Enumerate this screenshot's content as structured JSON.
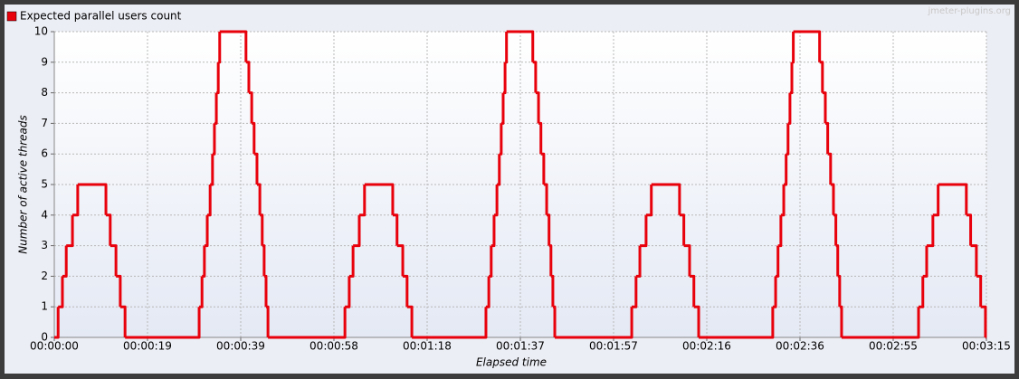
{
  "chart_data": {
    "type": "step-line",
    "watermark": "jmeter-plugins.org",
    "xlabel": "Elapsed time",
    "ylabel": "Number of active threads",
    "legend": "top-left",
    "grid": true,
    "series": [
      {
        "name": "Expected parallel users count",
        "color": "#e8000b",
        "x": [
          0,
          0.8,
          1.7,
          2.5,
          3.8,
          4.9,
          10.8,
          11.7,
          12.9,
          13.8,
          14.8,
          30.3,
          30.9,
          31.4,
          32.0,
          32.6,
          33.1,
          33.5,
          33.9,
          34.3,
          34.6,
          40.1,
          40.7,
          41.3,
          41.8,
          42.4,
          43.0,
          43.5,
          43.9,
          44.3,
          44.7,
          60.8,
          61.7,
          62.5,
          63.8,
          64.9,
          70.8,
          71.7,
          72.9,
          73.8,
          74.8,
          90.3,
          90.9,
          91.4,
          92.0,
          92.6,
          93.1,
          93.5,
          93.9,
          94.3,
          94.6,
          100.1,
          100.7,
          101.3,
          101.8,
          102.4,
          103.0,
          103.5,
          103.9,
          104.3,
          104.7,
          120.8,
          121.7,
          122.5,
          123.8,
          124.9,
          130.8,
          131.7,
          132.9,
          133.8,
          134.8,
          150.3,
          150.9,
          151.4,
          152.0,
          152.6,
          153.1,
          153.5,
          153.9,
          154.3,
          154.6,
          160.1,
          160.7,
          161.3,
          161.8,
          162.4,
          163.0,
          163.5,
          163.9,
          164.3,
          164.7,
          180.8,
          181.7,
          182.5,
          183.8,
          184.9,
          190.8,
          191.7,
          192.9,
          193.8,
          194.8
        ],
        "values": [
          0,
          1,
          2,
          3,
          4,
          5,
          4,
          3,
          2,
          1,
          0,
          1,
          2,
          3,
          4,
          5,
          6,
          7,
          8,
          9,
          10,
          9,
          8,
          7,
          6,
          5,
          4,
          3,
          2,
          1,
          0,
          1,
          2,
          3,
          4,
          5,
          4,
          3,
          2,
          1,
          0,
          1,
          2,
          3,
          4,
          5,
          6,
          7,
          8,
          9,
          10,
          9,
          8,
          7,
          6,
          5,
          4,
          3,
          2,
          1,
          0,
          1,
          2,
          3,
          4,
          5,
          4,
          3,
          2,
          1,
          0,
          1,
          2,
          3,
          4,
          5,
          6,
          7,
          8,
          9,
          10,
          9,
          8,
          7,
          6,
          5,
          4,
          3,
          2,
          1,
          0,
          1,
          2,
          3,
          4,
          5,
          4,
          3,
          2,
          1,
          0
        ]
      }
    ],
    "xlim": [
      0,
      195
    ],
    "xticks": [
      {
        "value": 0,
        "label": "00:00:00"
      },
      {
        "value": 19.5,
        "label": "00:00:19"
      },
      {
        "value": 39,
        "label": "00:00:39"
      },
      {
        "value": 58.5,
        "label": "00:00:58"
      },
      {
        "value": 78,
        "label": "00:01:18"
      },
      {
        "value": 97.5,
        "label": "00:01:37"
      },
      {
        "value": 117,
        "label": "00:01:57"
      },
      {
        "value": 136.5,
        "label": "00:02:16"
      },
      {
        "value": 156,
        "label": "00:02:36"
      },
      {
        "value": 175.5,
        "label": "00:02:55"
      },
      {
        "value": 195,
        "label": "00:03:15"
      }
    ],
    "ylim": [
      0,
      10
    ],
    "yticks": [
      0,
      1,
      2,
      3,
      4,
      5,
      6,
      7,
      8,
      9,
      10
    ]
  }
}
